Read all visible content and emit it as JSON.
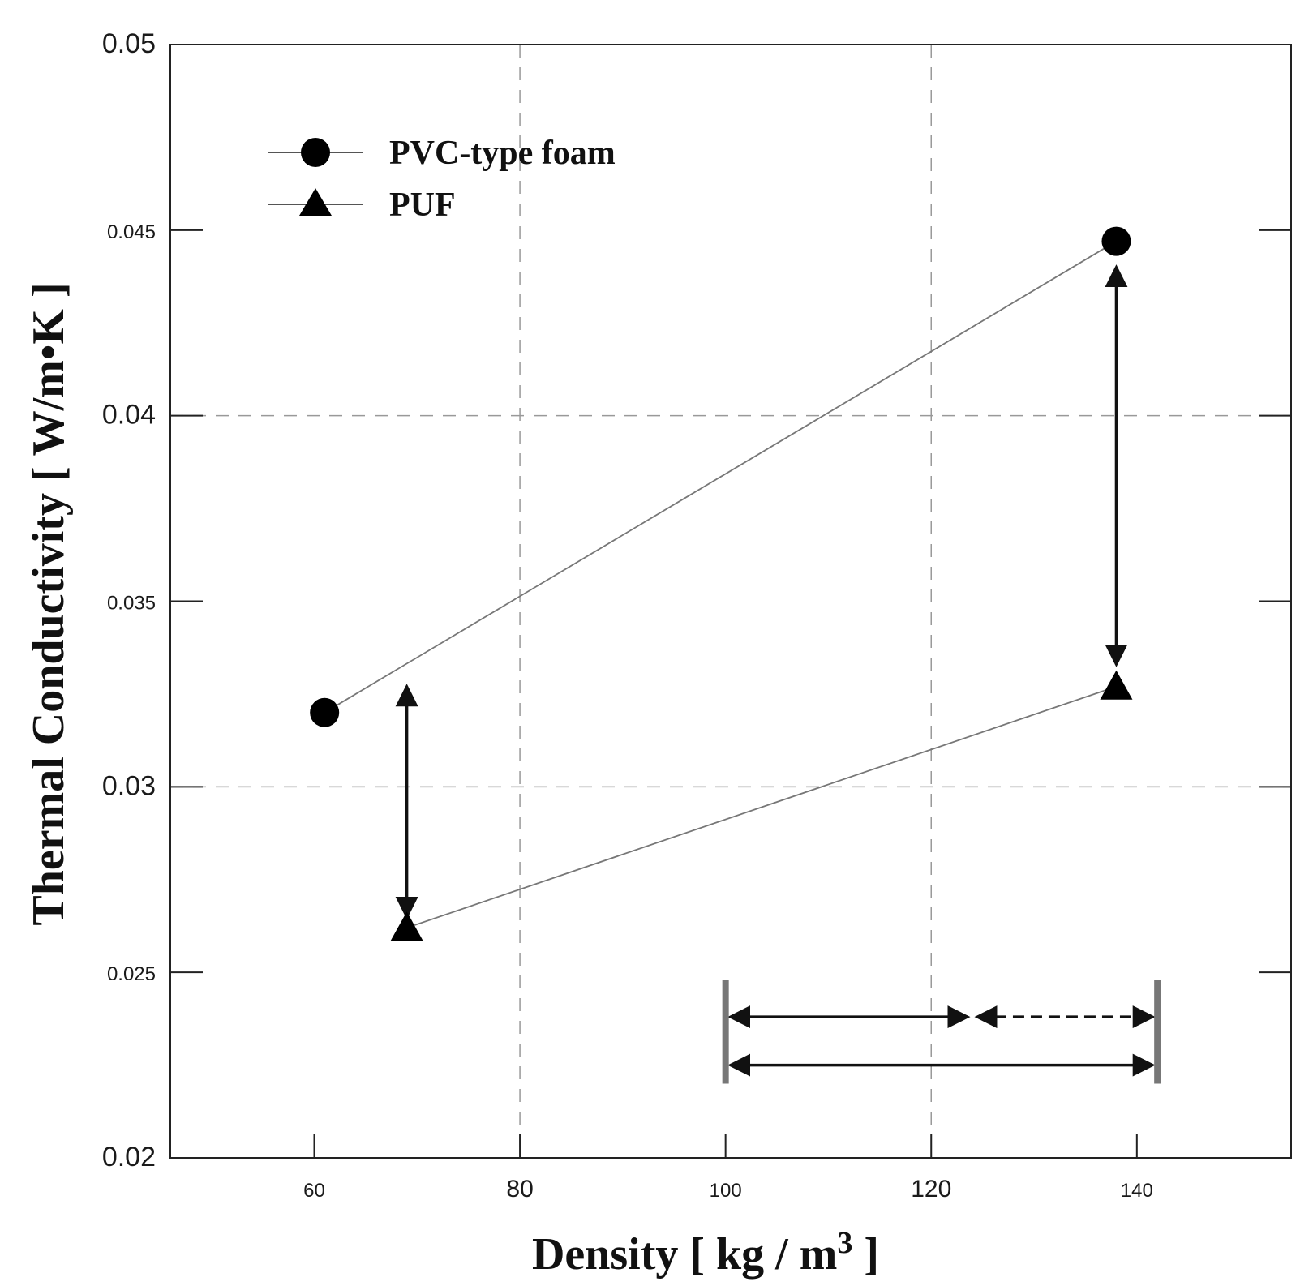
{
  "chart_data": {
    "type": "line",
    "title": "",
    "xlabel": "Density [ kg / m3 ]",
    "xlabel_main": "Density [ kg / m",
    "xlabel_sup": "3",
    "xlabel_end": " ]",
    "ylabel": "Thermal Conductivity [ W/m•K ]",
    "xlim": [
      46,
      155
    ],
    "ylim": [
      0.02,
      0.05
    ],
    "xticks": [
      60,
      80,
      100,
      120,
      140
    ],
    "xtick_labels": [
      "60",
      "80",
      "100",
      "120",
      "140"
    ],
    "yticks": [
      0.02,
      0.025,
      0.03,
      0.035,
      0.04,
      0.045,
      0.05
    ],
    "ytick_labels": [
      "0.02",
      "0.025",
      "0.03",
      "0.035",
      "0.04",
      "0.045",
      "0.05"
    ],
    "grid": "dashed at 80, 120 and 0.03, 0.04",
    "legend_position": "top-left",
    "series": [
      {
        "name": "PVC-type foam",
        "marker": "circle",
        "x": [
          61,
          138
        ],
        "y": [
          0.032,
          0.0447
        ]
      },
      {
        "name": "PUF",
        "marker": "triangle",
        "x": [
          69,
          138
        ],
        "y": [
          0.0262,
          0.0327
        ]
      }
    ],
    "annotations": [
      {
        "kind": "vertical-double-arrow",
        "x": 69,
        "y_from": 0.0327,
        "y_to": 0.0265
      },
      {
        "kind": "vertical-double-arrow",
        "x": 138,
        "y_from": 0.044,
        "y_to": 0.0333
      },
      {
        "kind": "horizontal-double-arrow",
        "style": "solid",
        "x_from": 100,
        "x_to": 124,
        "y": 0.0238
      },
      {
        "kind": "horizontal-double-arrow",
        "style": "dashed",
        "x_from": 124,
        "x_to": 142,
        "y": 0.0238
      },
      {
        "kind": "horizontal-double-arrow",
        "style": "solid",
        "x_from": 100,
        "x_to": 142,
        "y": 0.0225
      },
      {
        "kind": "range-bar",
        "x": 100,
        "y_from": 0.022,
        "y_to": 0.0248
      },
      {
        "kind": "range-bar",
        "x": 142,
        "y_from": 0.022,
        "y_to": 0.0248
      }
    ]
  }
}
